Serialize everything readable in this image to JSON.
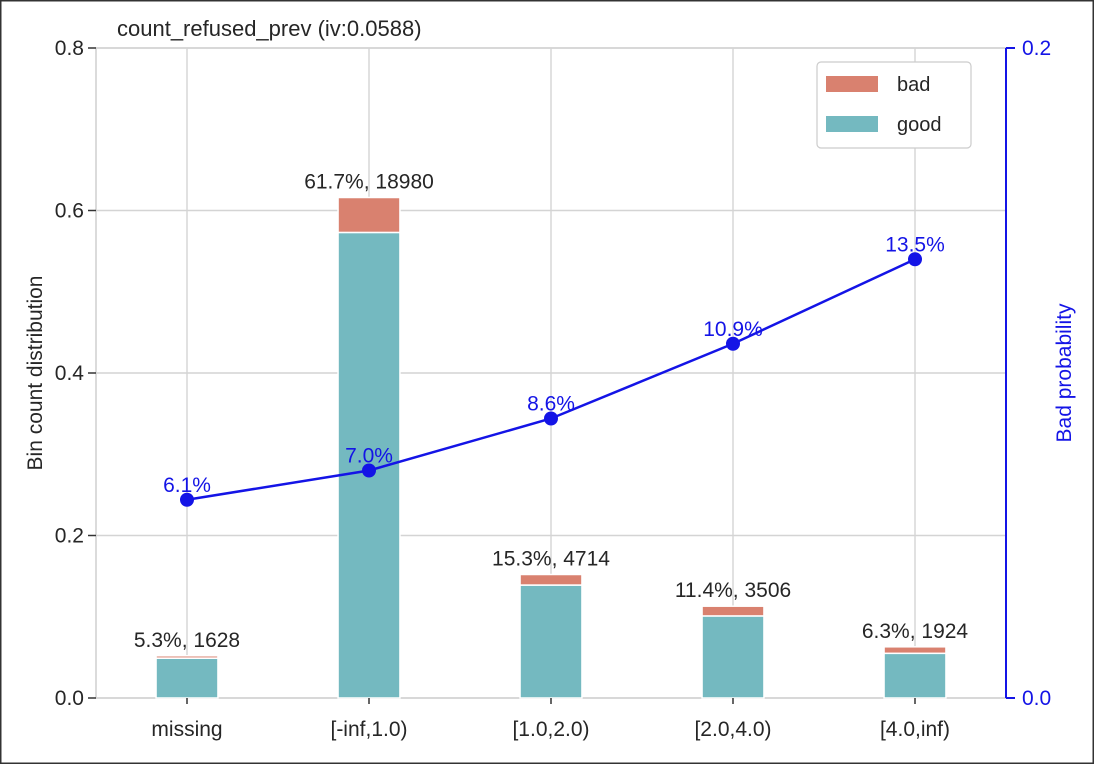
{
  "chart_data": {
    "type": "bar",
    "title": "count_refused_prev  (iv:0.0588)",
    "categories": [
      "missing",
      "[-inf,1.0)",
      "[1.0,2.0)",
      "[2.0,4.0)",
      "[4.0,inf)"
    ],
    "series": [
      {
        "name": "good",
        "values": [
          0.049,
          0.573,
          0.139,
          0.101,
          0.055
        ]
      },
      {
        "name": "bad",
        "values": [
          0.003,
          0.043,
          0.013,
          0.012,
          0.008
        ]
      }
    ],
    "line_series": {
      "name": "Bad probability",
      "values": [
        0.061,
        0.07,
        0.086,
        0.109,
        0.135
      ],
      "labels": [
        "6.1%",
        "7.0%",
        "8.6%",
        "10.9%",
        "13.5%"
      ]
    },
    "bar_labels": [
      "5.3%, 1628",
      "61.7%, 18980",
      "15.3%, 4714",
      "11.4%, 3506",
      "6.3%, 1924"
    ],
    "ylabel": "Bin count distribution",
    "ylabel_right": "Bad probability",
    "ylim": [
      0,
      0.8
    ],
    "ylim_right": [
      0,
      0.2
    ],
    "yticks": [
      0.0,
      0.2,
      0.4,
      0.6,
      0.8
    ],
    "ytick_labels": [
      "0.0",
      "0.2",
      "0.4",
      "0.6",
      "0.8"
    ],
    "yticks_right": [
      0.0,
      0.2
    ],
    "ytick_labels_right": [
      "0.0",
      "0.2"
    ],
    "legend": {
      "position": "top-right",
      "entries": [
        "bad",
        "good"
      ]
    },
    "colors": {
      "good": "#74b9c0",
      "bad": "#d9816f",
      "line": "#1414e6",
      "right_axis": "#1414e6"
    },
    "grid": true
  }
}
